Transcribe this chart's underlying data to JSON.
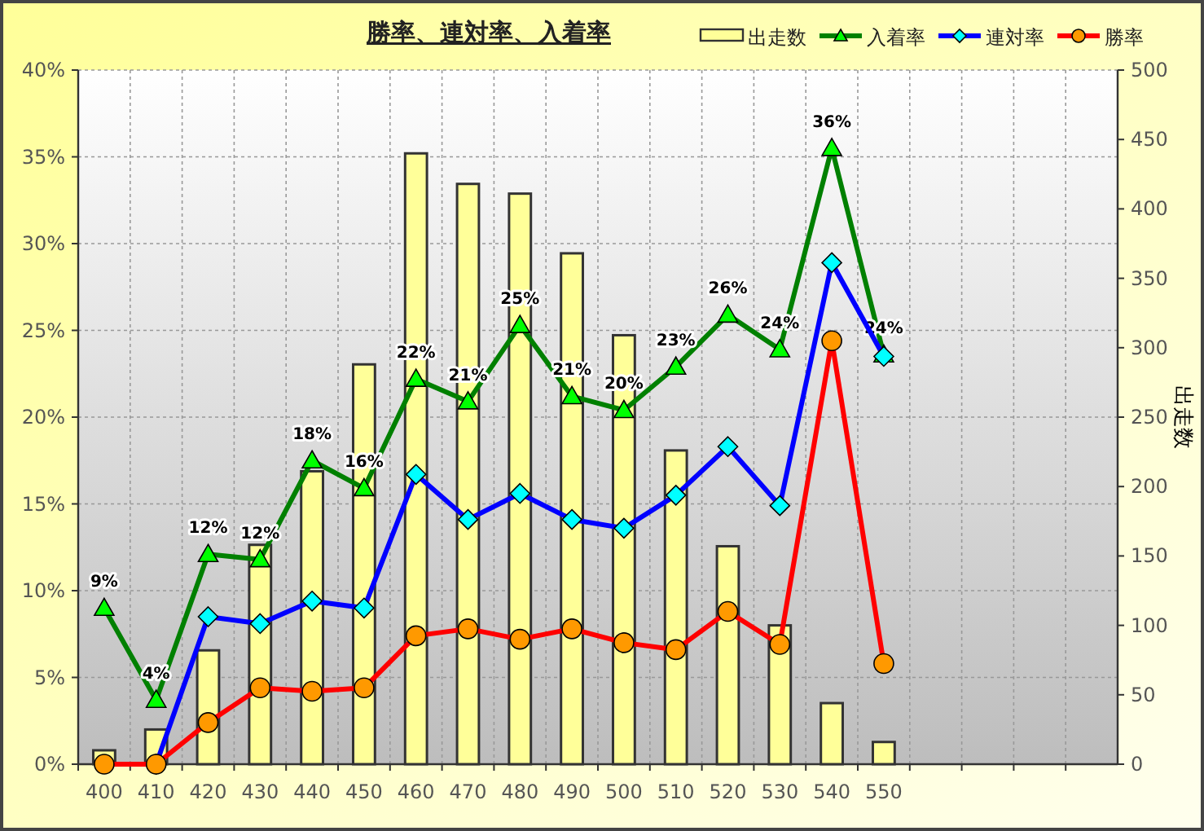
{
  "chart_data": {
    "type": "bar",
    "title": "勝率、連対率、入着率",
    "y2label": "出走数",
    "categories": [
      "400",
      "410",
      "420",
      "430",
      "440",
      "450",
      "460",
      "470",
      "480",
      "490",
      "500",
      "510",
      "520",
      "530",
      "540",
      "550",
      null,
      null,
      null,
      null
    ],
    "series": [
      {
        "name": "出走数",
        "axis": "y2",
        "color": "#ffff99",
        "values": [
          10,
          25,
          82,
          158,
          211,
          288,
          440,
          418,
          411,
          368,
          309,
          226,
          157,
          100,
          44,
          16,
          null,
          null,
          null,
          null
        ]
      },
      {
        "name": "入着率",
        "type": "line",
        "color": "#008000",
        "marker": "triangle",
        "values": [
          9.0,
          3.7,
          12.1,
          11.8,
          17.5,
          15.9,
          22.2,
          20.9,
          25.3,
          21.2,
          20.4,
          22.9,
          25.9,
          23.9,
          35.5,
          23.6,
          null,
          null,
          null,
          null
        ],
        "value_labels": [
          "9%",
          "4%",
          "12%",
          "12%",
          "18%",
          "16%",
          "22%",
          "21%",
          "25%",
          "21%",
          "20%",
          "23%",
          "26%",
          "24%",
          "36%",
          "24%",
          null,
          null,
          null,
          null
        ]
      },
      {
        "name": "連対率",
        "type": "line",
        "color": "#0000ff",
        "marker": "diamond",
        "values": [
          null,
          0,
          8.5,
          8.1,
          9.4,
          9.0,
          16.7,
          14.1,
          15.6,
          14.1,
          13.6,
          15.5,
          18.3,
          14.9,
          28.9,
          23.5,
          null,
          null,
          null,
          null
        ]
      },
      {
        "name": "勝率",
        "type": "line",
        "color": "#ff0000",
        "marker": "circle",
        "values": [
          0,
          0,
          2.4,
          4.4,
          4.2,
          4.4,
          7.4,
          7.8,
          7.2,
          7.8,
          7.0,
          6.6,
          8.8,
          6.9,
          24.4,
          5.8,
          null,
          null,
          null,
          null
        ]
      }
    ],
    "ylim": [
      0,
      40
    ],
    "yticks": [
      {
        "value": 0,
        "label": "0%"
      },
      {
        "value": 5,
        "label": "5%"
      },
      {
        "value": 10,
        "label": "10%"
      },
      {
        "value": 15,
        "label": "15%"
      },
      {
        "value": 20,
        "label": "20%"
      },
      {
        "value": 25,
        "label": "25%"
      },
      {
        "value": 30,
        "label": "30%"
      },
      {
        "value": 35,
        "label": "35%"
      },
      {
        "value": 40,
        "label": "40%"
      }
    ],
    "y2lim": [
      0,
      500
    ],
    "y2ticks": [
      0,
      50,
      100,
      150,
      200,
      250,
      300,
      350,
      400,
      450,
      500
    ],
    "grid": true,
    "legend": "top right"
  }
}
